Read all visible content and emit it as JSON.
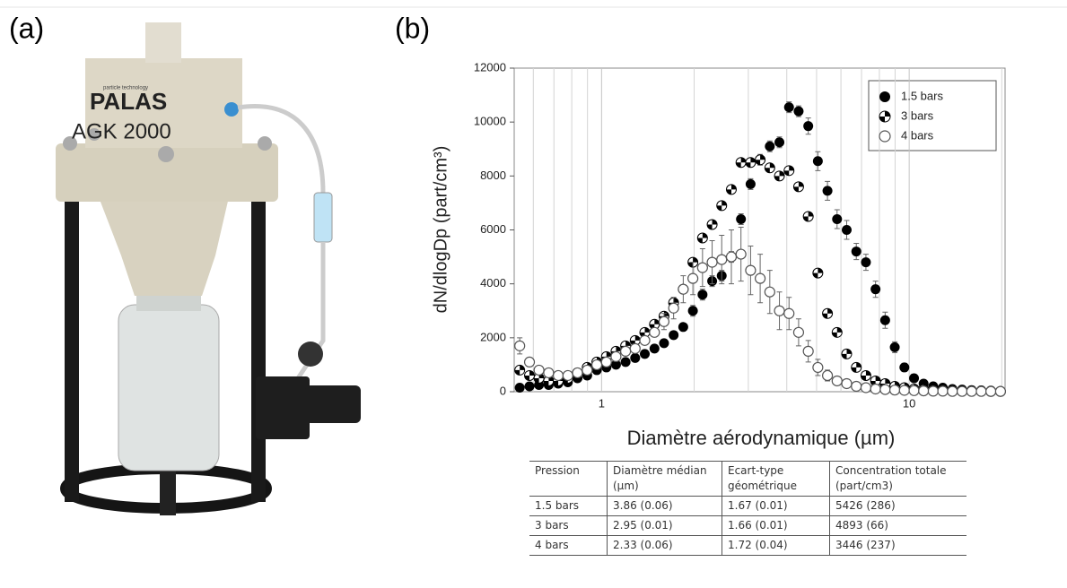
{
  "panel_a": {
    "label": "(a)",
    "device_texts": [
      "particle technology",
      "PALAS",
      "AGK 2000"
    ]
  },
  "panel_b": {
    "label": "(b)"
  },
  "chart_data": {
    "type": "scatter",
    "x_label": "Diamètre aérodynamique (µm)",
    "y_label": "dN/dlogDp (part/cm³)",
    "x_scale": "log",
    "xlim": [
      0.52,
      20.5
    ],
    "xticks": [
      1,
      10
    ],
    "x_minor_grid": [
      0.6,
      0.7,
      0.8,
      0.9,
      2,
      3,
      4,
      5,
      6,
      7,
      8,
      9,
      20
    ],
    "ylim": [
      0,
      12000
    ],
    "yticks": [
      0,
      2000,
      4000,
      6000,
      8000,
      10000,
      12000
    ],
    "grid": true,
    "legend": "upper right",
    "x": [
      0.542,
      0.583,
      0.626,
      0.673,
      0.723,
      0.777,
      0.835,
      0.898,
      0.965,
      1.037,
      1.114,
      1.197,
      1.286,
      1.382,
      1.486,
      1.596,
      1.715,
      1.843,
      1.981,
      2.129,
      2.288,
      2.458,
      2.642,
      2.839,
      3.051,
      3.278,
      3.523,
      3.786,
      4.068,
      4.371,
      4.698,
      5.048,
      5.425,
      5.829,
      6.264,
      6.732,
      7.234,
      7.774,
      8.354,
      8.977,
      9.647,
      10.37,
      11.14,
      11.97,
      12.86,
      13.82,
      14.86,
      15.96,
      17.15,
      18.43,
      19.81
    ],
    "series": [
      {
        "name": "1.5 bars",
        "color": "#000000",
        "marker": "filled",
        "values": [
          150,
          200,
          250,
          250,
          300,
          350,
          500,
          600,
          800,
          900,
          1000,
          1100,
          1250,
          1400,
          1600,
          1800,
          2100,
          2400,
          3000,
          3600,
          4100,
          4300,
          5000,
          6400,
          7700,
          8600,
          9100,
          9250,
          10550,
          10400,
          9850,
          8550,
          7450,
          6400,
          6000,
          5200,
          4800,
          3800,
          2650,
          1650,
          900,
          500,
          300,
          200,
          150,
          100,
          80,
          60,
          50,
          40,
          30
        ],
        "errors": [
          0,
          0,
          0,
          0,
          0,
          0,
          0,
          0,
          0,
          0,
          0,
          0,
          0,
          0,
          0,
          0,
          0,
          0,
          200,
          200,
          200,
          200,
          200,
          200,
          200,
          200,
          200,
          200,
          200,
          200,
          300,
          350,
          350,
          350,
          350,
          300,
          300,
          300,
          300,
          200,
          150,
          100,
          0,
          0,
          0,
          0,
          0,
          0,
          0,
          0,
          0
        ]
      },
      {
        "name": "3 bars",
        "color": "#000000",
        "marker": "checkered",
        "values": [
          800,
          600,
          500,
          400,
          400,
          500,
          700,
          900,
          1100,
          1300,
          1500,
          1700,
          1900,
          2200,
          2500,
          2800,
          3300,
          3800,
          4800,
          5700,
          6200,
          6900,
          7500,
          8500,
          8500,
          8600,
          8300,
          8000,
          8200,
          7600,
          6500,
          4400,
          2900,
          2200,
          1400,
          900,
          600,
          400,
          300,
          200,
          150,
          100,
          80,
          60,
          50,
          40,
          30,
          20,
          20,
          10,
          10
        ]
      },
      {
        "name": "4 bars",
        "color": "#555555",
        "marker": "open",
        "values": [
          1700,
          1100,
          800,
          700,
          600,
          600,
          700,
          800,
          1000,
          1100,
          1300,
          1500,
          1600,
          1900,
          2200,
          2600,
          3100,
          3800,
          4200,
          4600,
          4800,
          4900,
          5000,
          5100,
          4500,
          4200,
          3700,
          3000,
          2900,
          2200,
          1500,
          900,
          600,
          400,
          300,
          200,
          150,
          100,
          80,
          60,
          50,
          40,
          30,
          20,
          20,
          10,
          10,
          10,
          10,
          10,
          10
        ],
        "errors": [
          300,
          150,
          0,
          0,
          0,
          0,
          0,
          0,
          0,
          0,
          0,
          0,
          0,
          0,
          0,
          300,
          400,
          500,
          600,
          700,
          800,
          900,
          1000,
          1000,
          900,
          900,
          800,
          700,
          600,
          500,
          400,
          300,
          200,
          0,
          0,
          0,
          0,
          0,
          0,
          0,
          0,
          0,
          0,
          0,
          0,
          0,
          0,
          0,
          0,
          0,
          0
        ]
      }
    ]
  },
  "table": {
    "header": [
      "Pression",
      "Diamètre médian (µm)",
      "Ecart-type géométrique",
      "Concentration totale (part/cm3)"
    ],
    "rows": [
      [
        "1.5 bars",
        "3.86 (0.06)",
        "1.67 (0.01)",
        "5426 (286)"
      ],
      [
        "3 bars",
        "2.95 (0.01)",
        "1.66 (0.01)",
        "4893 (66)"
      ],
      [
        "4 bars",
        "2.33 (0.06)",
        "1.72 (0.04)",
        "3446 (237)"
      ]
    ]
  }
}
